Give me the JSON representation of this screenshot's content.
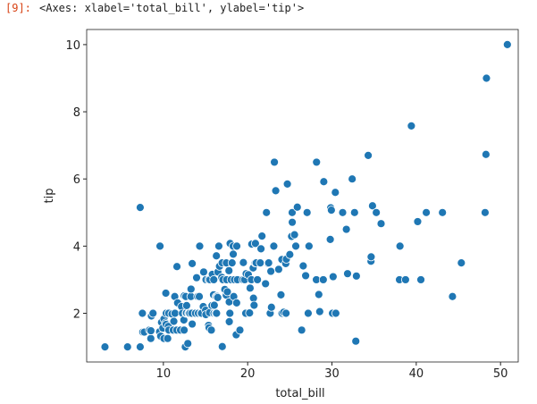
{
  "cell": {
    "prompt": "[9]:",
    "output": "<Axes: xlabel='total_bill', ylabel='tip'>"
  },
  "chart_data": {
    "type": "scatter",
    "xlabel": "total_bill",
    "ylabel": "tip",
    "color": "#1f77b4",
    "edgecolor": "#ffffff",
    "xlim": [
      0.9,
      52.1
    ],
    "xticks": [
      10,
      20,
      30,
      40,
      50
    ],
    "ylim": [
      0.55,
      10.45
    ],
    "yticks": [
      2,
      4,
      6,
      8,
      10
    ],
    "grid": false,
    "x": [
      3.07,
      5.75,
      7.25,
      7.25,
      7.51,
      7.56,
      7.74,
      8.35,
      8.51,
      8.52,
      8.58,
      8.77,
      9.55,
      9.6,
      9.68,
      9.78,
      9.94,
      10.07,
      10.07,
      10.27,
      10.29,
      10.33,
      10.34,
      10.51,
      10.59,
      10.63,
      10.65,
      11.02,
      11.17,
      11.24,
      11.35,
      11.38,
      11.59,
      11.61,
      11.69,
      12.03,
      12.16,
      12.26,
      12.43,
      12.46,
      12.48,
      12.6,
      12.66,
      12.69,
      12.74,
      12.76,
      12.9,
      13.0,
      13.03,
      13.13,
      13.27,
      13.28,
      13.37,
      13.42,
      13.42,
      13.81,
      13.94,
      14.07,
      14.15,
      14.26,
      14.31,
      14.48,
      14.52,
      14.73,
      14.78,
      15.01,
      15.04,
      15.06,
      15.36,
      15.38,
      15.42,
      15.48,
      15.53,
      15.69,
      15.77,
      15.81,
      15.95,
      15.98,
      16.0,
      16.04,
      16.21,
      16.27,
      16.29,
      16.31,
      16.4,
      16.45,
      16.47,
      16.58,
      16.66,
      16.93,
      16.97,
      16.99,
      17.07,
      17.29,
      17.46,
      17.47,
      17.51,
      17.59,
      17.78,
      17.81,
      17.82,
      17.89,
      17.92,
      18.04,
      18.15,
      18.24,
      18.28,
      18.29,
      18.35,
      18.43,
      18.64,
      18.69,
      18.71,
      18.78,
      19.08,
      19.44,
      19.49,
      19.65,
      19.77,
      19.82,
      20.08,
      20.23,
      20.29,
      20.45,
      20.49,
      20.65,
      20.69,
      20.76,
      20.9,
      20.92,
      21.01,
      21.16,
      21.5,
      21.58,
      21.7,
      22.12,
      22.23,
      22.42,
      22.49,
      22.67,
      22.75,
      22.82,
      23.1,
      23.17,
      23.33,
      23.68,
      23.95,
      24.01,
      24.06,
      24.08,
      24.27,
      24.52,
      24.55,
      24.59,
      24.71,
      25.0,
      25.21,
      25.28,
      25.29,
      25.56,
      25.71,
      25.89,
      26.41,
      26.59,
      26.88,
      27.05,
      27.18,
      27.2,
      27.28,
      28.15,
      28.17,
      28.44,
      28.55,
      28.97,
      29.03,
      29.8,
      29.85,
      29.93,
      30.06,
      30.14,
      30.4,
      30.46,
      31.27,
      31.71,
      31.85,
      32.4,
      32.68,
      32.83,
      32.9,
      34.3,
      34.63,
      34.65,
      34.81,
      35.26,
      35.83,
      38.01,
      38.07,
      38.73,
      39.42,
      40.17,
      40.55,
      41.19,
      43.11,
      44.3,
      45.35,
      48.17,
      48.27,
      48.33,
      50.81
    ],
    "values": [
      1,
      1,
      1,
      5.15,
      2,
      1.44,
      1.44,
      1.5,
      1.25,
      1.48,
      1.92,
      2,
      1.45,
      4,
      1.32,
      1.73,
      1.56,
      1.83,
      1.25,
      1.71,
      2.6,
      1.67,
      2,
      1.25,
      1.61,
      2,
      1.5,
      1.98,
      1.5,
      1.76,
      2.5,
      2,
      1.5,
      3.39,
      2.31,
      1.5,
      2.2,
      2,
      1.8,
      1.5,
      2.52,
      1,
      2.5,
      2,
      2.01,
      2.23,
      1.1,
      2,
      2,
      2,
      2.5,
      2.72,
      2,
      3.48,
      1.68,
      2,
      3.06,
      2.5,
      2,
      2.5,
      4,
      2,
      2,
      2.2,
      3.23,
      2.09,
      1.96,
      3,
      1.64,
      3,
      1.57,
      2.02,
      3,
      1.5,
      2.23,
      3.16,
      2.55,
      3,
      2,
      2.24,
      2,
      2.5,
      3.71,
      2,
      2.5,
      2.47,
      3.23,
      4,
      3.4,
      3.07,
      3.5,
      1.01,
      3,
      2.71,
      2.54,
      3.5,
      3,
      2.64,
      3.27,
      2.34,
      1.75,
      2,
      4.08,
      3,
      3.5,
      3.76,
      4,
      3.76,
      2.5,
      3,
      1.36,
      2.31,
      4,
      3,
      1.5,
      3,
      3.51,
      3,
      2,
      3.18,
      3.15,
      2.01,
      2.75,
      3,
      4.06,
      3.35,
      2.45,
      2.24,
      3.5,
      4.08,
      3.5,
      3,
      3.5,
      3.92,
      4.3,
      2.88,
      5,
      3.48,
      3.5,
      2,
      3.25,
      2.18,
      4,
      6.5,
      5.65,
      3.31,
      2.55,
      2,
      3.6,
      2,
      2.03,
      3.48,
      2,
      3.61,
      5.85,
      3.75,
      4.29,
      5,
      4.71,
      4.34,
      4,
      5.16,
      1.5,
      3.41,
      3.12,
      5,
      2,
      4,
      4,
      3,
      6.5,
      2.56,
      2.05,
      3,
      5.92,
      4.2,
      5.14,
      5.07,
      2,
      3.09,
      5.6,
      2,
      5,
      4.5,
      3.18,
      6,
      5,
      1.17,
      3.11,
      6.7,
      3.55,
      3.68,
      5.2,
      5,
      4.67,
      3,
      4,
      3,
      7.58,
      4.73,
      3,
      5,
      5,
      2.5,
      3.5,
      5,
      6.73,
      9,
      10
    ]
  }
}
